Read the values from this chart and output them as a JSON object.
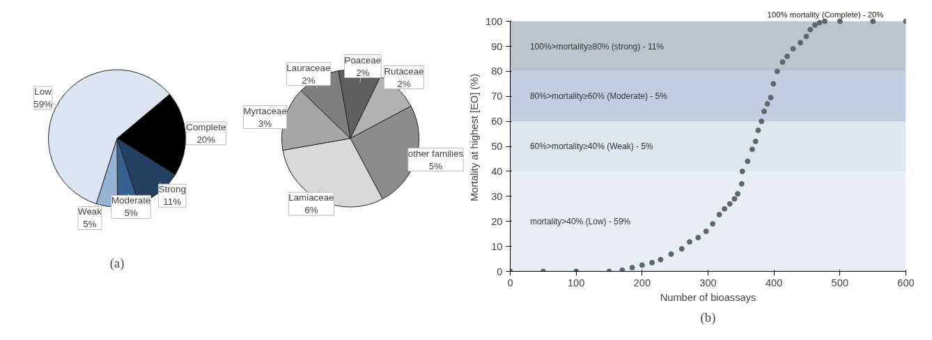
{
  "chart_data": [
    {
      "type": "pie",
      "categories": [
        "Complete",
        "Strong",
        "Moderate",
        "Weak",
        "Low"
      ],
      "values": [
        20,
        11,
        5,
        5,
        59
      ],
      "value_labels": [
        "20%",
        "11%",
        "5%",
        "5%",
        "59%"
      ],
      "colors": [
        "#000000",
        "#254061",
        "#376092",
        "#95b3d7",
        "#dce6f2"
      ],
      "annotations": [
        "(a)"
      ]
    },
    {
      "type": "pie",
      "categories": [
        "Poaceae",
        "Rutaceae",
        "other families",
        "Lamiaceae",
        "Myrtaceae",
        "Lauraceae"
      ],
      "values": [
        2,
        2,
        5,
        6,
        3,
        2
      ],
      "value_labels": [
        "2%",
        "2%",
        "5%",
        "6%",
        "3%",
        "2%"
      ],
      "colors": [
        "#5f5f5f",
        "#b2b2b2",
        "#8c8c8c",
        "#d9d9d9",
        "#a6a6a6",
        "#7f7f7f"
      ]
    },
    {
      "type": "scatter",
      "xlabel": "Number of bioassays",
      "ylabel": "Mortality at highest [EO] (%)",
      "marker": "circle",
      "color": "#5f6670",
      "x": [
        0,
        50,
        100,
        150,
        170,
        185,
        200,
        215,
        228,
        244,
        260,
        272,
        285,
        297,
        307,
        317,
        325,
        333,
        340,
        345,
        351,
        352,
        360,
        367,
        372,
        376,
        381,
        385,
        390,
        395,
        399,
        405,
        413,
        420,
        429,
        440,
        449,
        455,
        462,
        469,
        477,
        500,
        550,
        600
      ],
      "values": [
        0,
        0,
        0,
        0,
        0.5,
        1.5,
        2.5,
        3.5,
        4.7,
        6.9,
        9,
        11.8,
        13.5,
        16,
        19,
        22.7,
        25,
        27,
        29,
        31,
        35,
        40,
        44,
        48.8,
        52,
        56.4,
        60,
        64,
        67,
        69.5,
        75,
        80,
        83.7,
        86,
        89,
        91.5,
        94,
        96.7,
        98.5,
        99.5,
        100,
        100,
        100,
        100
      ],
      "xlim": [
        0,
        600
      ],
      "xticks": [
        0,
        100,
        200,
        300,
        400,
        500,
        600
      ],
      "ylim": [
        0,
        100
      ],
      "yticks": [
        0,
        10,
        20,
        30,
        40,
        50,
        60,
        70,
        80,
        90,
        100
      ],
      "grid": false,
      "bands": [
        {
          "axis": "y",
          "from": 0,
          "to": 40,
          "label": "mortality>40% (Low) - 59%",
          "color": "#e8edf6"
        },
        {
          "axis": "y",
          "from": 40,
          "to": 60,
          "label": "60%>mortality≥40% (Weak) - 5%",
          "color": "#dfe5f1"
        },
        {
          "axis": "y",
          "from": 60,
          "to": 80,
          "label": "80%>mortality≥60% (Moderate) - 5%",
          "color": "#c1cde0"
        },
        {
          "axis": "y",
          "from": 80,
          "to": 100,
          "label": "100%>mortality≥80% (strong) - 11%",
          "color": "#bcc4cf"
        }
      ],
      "annotations": [
        {
          "text": "100% mortality (Complete) - 20%",
          "x": 478,
          "y": 100
        },
        "(b)"
      ]
    }
  ]
}
